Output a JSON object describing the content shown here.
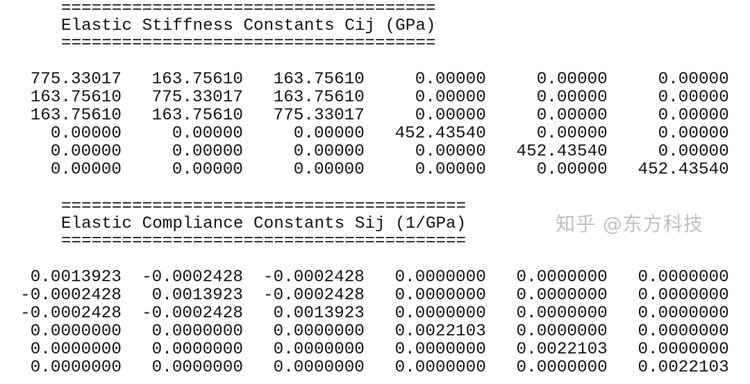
{
  "stiffness": {
    "rule": "=====================================",
    "title": "Elastic Stiffness Constants Cij (GPa)",
    "rows": [
      [
        "775.33017",
        "163.75610",
        "163.75610",
        "0.00000",
        "0.00000",
        "0.00000"
      ],
      [
        "163.75610",
        "775.33017",
        "163.75610",
        "0.00000",
        "0.00000",
        "0.00000"
      ],
      [
        "163.75610",
        "163.75610",
        "775.33017",
        "0.00000",
        "0.00000",
        "0.00000"
      ],
      [
        "0.00000",
        "0.00000",
        "0.00000",
        "452.43540",
        "0.00000",
        "0.00000"
      ],
      [
        "0.00000",
        "0.00000",
        "0.00000",
        "0.00000",
        "452.43540",
        "0.00000"
      ],
      [
        "0.00000",
        "0.00000",
        "0.00000",
        "0.00000",
        "0.00000",
        "452.43540"
      ]
    ]
  },
  "compliance": {
    "rule": "========================================",
    "title": "Elastic Compliance Constants Sij (1/GPa)",
    "rows": [
      [
        "0.0013923",
        "-0.0002428",
        "-0.0002428",
        "0.0000000",
        "0.0000000",
        "0.0000000"
      ],
      [
        "-0.0002428",
        "0.0013923",
        "-0.0002428",
        "0.0000000",
        "0.0000000",
        "0.0000000"
      ],
      [
        "-0.0002428",
        "-0.0002428",
        "0.0013923",
        "0.0000000",
        "0.0000000",
        "0.0000000"
      ],
      [
        "0.0000000",
        "0.0000000",
        "0.0000000",
        "0.0022103",
        "0.0000000",
        "0.0000000"
      ],
      [
        "0.0000000",
        "0.0000000",
        "0.0000000",
        "0.0000000",
        "0.0022103",
        "0.0000000"
      ],
      [
        "0.0000000",
        "0.0000000",
        "0.0000000",
        "0.0000000",
        "0.0000000",
        "0.0022103"
      ]
    ]
  },
  "watermark": "知乎 @东方科技"
}
